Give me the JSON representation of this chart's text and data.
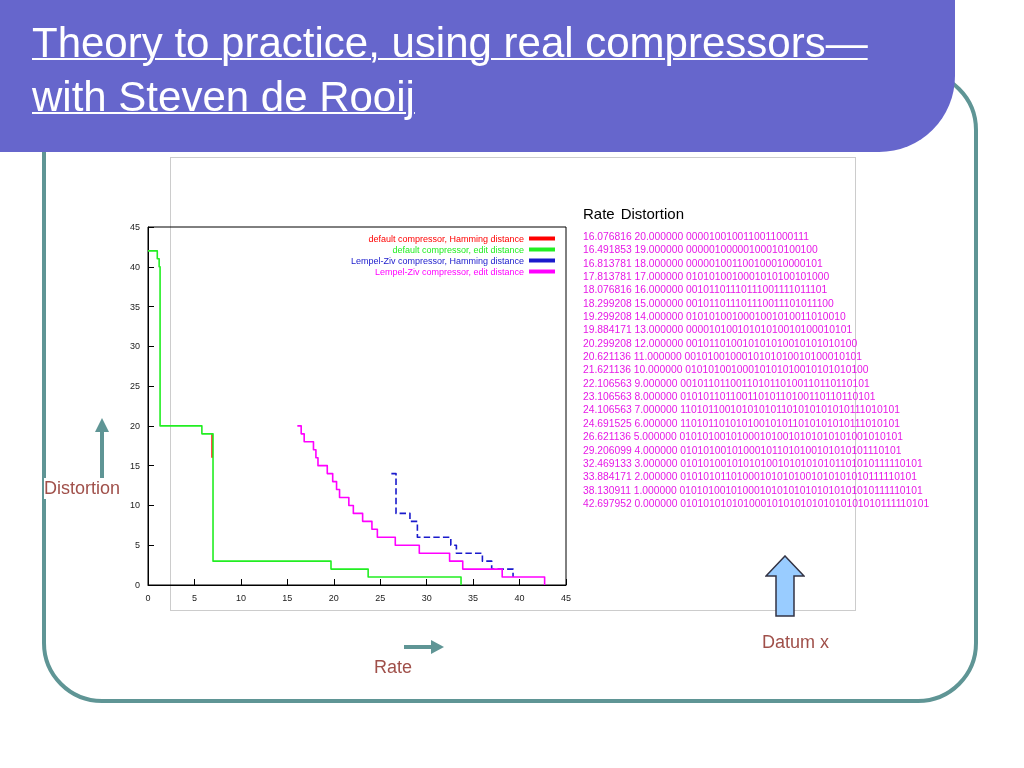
{
  "chart_data": {
    "type": "step",
    "title": "Theory to practice, using real compressors—with Steven de Rooij",
    "xlabel": "Rate",
    "ylabel": "Distortion",
    "xlim": [
      0,
      45
    ],
    "xticks": [
      0,
      5,
      10,
      15,
      20,
      25,
      30,
      35,
      40,
      45
    ],
    "ylim": [
      0,
      45
    ],
    "yticks": [
      0,
      5,
      10,
      15,
      20,
      25,
      30,
      35,
      40,
      45
    ],
    "grid": false,
    "legend": "top right",
    "marker": "none",
    "series": [
      {
        "name": "default compressor, Hamming distance",
        "color": "#ff0000",
        "line_style": "solid",
        "x": [
          6.9,
          6.9
        ],
        "values": [
          19,
          16
        ]
      },
      {
        "name": "default compressor, edit distance",
        "color": "#22ee22",
        "line_style": "solid",
        "x": [
          0,
          1.0,
          1.2,
          1.3,
          5.8,
          7.0,
          19.7,
          23.7,
          33.7
        ],
        "values": [
          42,
          41,
          40,
          20,
          19,
          3,
          2,
          1,
          0
        ]
      },
      {
        "name": "Lempel-Ziv compressor, Hamming distance",
        "color": "#1a1acc",
        "line_style": "dashed",
        "x": [
          26.2,
          26.7,
          28.2,
          29.0,
          32.6,
          33.2,
          36.0,
          37.0,
          39.3
        ],
        "values": [
          14,
          9,
          8,
          6,
          5,
          4,
          3,
          2,
          1
        ]
      },
      {
        "name": "Lempel-Ziv compressor, edit distance",
        "color": "#ff00ff",
        "line_style": "solid",
        "x": [
          16.076816,
          16.491853,
          16.813781,
          17.813781,
          18.076816,
          18.299208,
          19.299208,
          19.884171,
          20.299208,
          20.621136,
          21.621136,
          22.106563,
          23.106563,
          24.106563,
          24.691525,
          26.621136,
          29.206099,
          32.469133,
          33.884171,
          38.130911,
          42.697952
        ],
        "values": [
          20,
          19,
          18,
          17,
          16,
          15,
          14,
          13,
          12,
          11,
          10,
          9,
          8,
          7,
          6,
          5,
          4,
          3,
          2,
          1,
          0
        ]
      }
    ],
    "annotations": [
      "Rate",
      "Distortion",
      "16.076816 20.000000 0000100100110011000111",
      "16.491853 19.000000 00000100000100010100100",
      "16.813781 18.000000 000001001100100010000101",
      "17.813781 17.000000 0101010010001010100101000",
      "18.076816 16.000000 00101101110111001111011101",
      "18.299208 15.000000 001011011101110011101011100",
      "19.299208 14.000000 0101010010001001010011010010",
      "19.884171 13.000000 00001010010101010010100010101",
      "20.299208 12.000000 001011010010101010010101010100",
      "20.621136 11.000000 0010100100010101010010100010101",
      "21.621136 10.000000 01010100100010101010010101010100",
      "22.106563 9.000000 0010110110011010110100110110110101",
      "23.106563 8.000000 01010110110011010110100110110110101",
      "24.106563 7.000000 110101100101010101101010101010111010101",
      "24.691525 6.000000 110101101010100101011010101010111010101",
      "26.621136 5.000000 010101001010001010010101010101001010101",
      "29.206099 4.000000 010101001010001011010100101010101110101",
      "32.469133 3.000000 0101010010101010010101010101101010111110101",
      "33.884171 2.000000 010101011010001010101001010101010111110101",
      "38.130911 1.000000 0101010010100010101010101010101010111110101",
      "42.697952 0.000000 01010101010100010101010101010101010111110101",
      "Datum x"
    ]
  }
}
